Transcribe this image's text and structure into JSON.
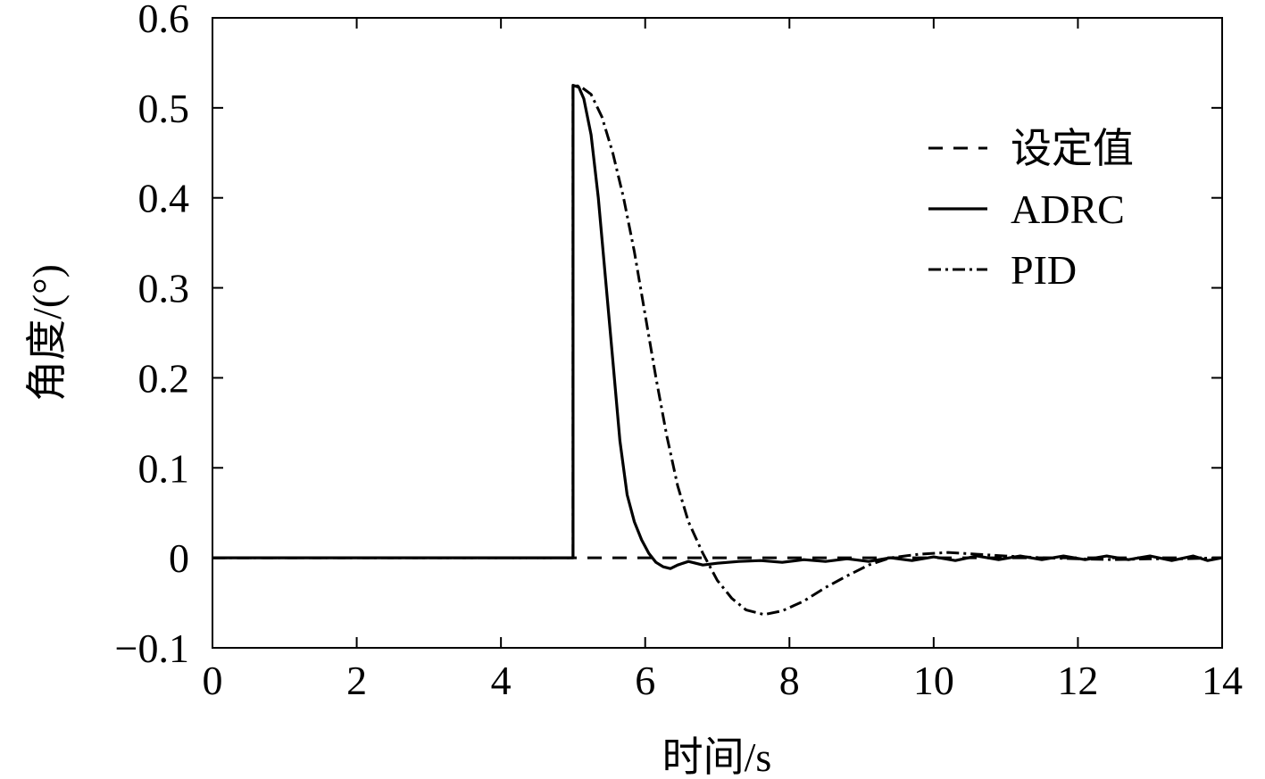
{
  "chart_data": {
    "type": "line",
    "xlabel": "时间/s",
    "ylabel": "角度/(°)",
    "xlim": [
      0,
      14
    ],
    "ylim": [
      -0.1,
      0.6
    ],
    "xticks": [
      0,
      2,
      4,
      6,
      8,
      10,
      12,
      14
    ],
    "yticks": [
      0.6,
      0.5,
      0.4,
      0.3,
      0.2,
      0.1,
      0,
      -0.1
    ],
    "xtick_labels": [
      "0",
      "2",
      "4",
      "6",
      "8",
      "10",
      "12",
      "14"
    ],
    "ytick_labels": [
      "0.6",
      "0.5",
      "0.4",
      "0.3",
      "0.2",
      "0.1",
      "0",
      "−0.1"
    ],
    "grid": false,
    "legend_position": "top-right",
    "series": [
      {
        "name": "设定值",
        "style": "dashed",
        "color": "#000000",
        "points": [
          [
            0,
            0
          ],
          [
            14,
            0
          ]
        ]
      },
      {
        "name": "ADRC",
        "style": "solid",
        "color": "#000000",
        "points": [
          [
            0,
            0
          ],
          [
            5.0,
            0
          ],
          [
            5.0,
            0.525
          ],
          [
            5.08,
            0.523
          ],
          [
            5.15,
            0.51
          ],
          [
            5.25,
            0.47
          ],
          [
            5.35,
            0.4
          ],
          [
            5.45,
            0.31
          ],
          [
            5.55,
            0.22
          ],
          [
            5.65,
            0.13
          ],
          [
            5.75,
            0.07
          ],
          [
            5.85,
            0.04
          ],
          [
            5.95,
            0.02
          ],
          [
            6.05,
            0.005
          ],
          [
            6.15,
            -0.005
          ],
          [
            6.25,
            -0.01
          ],
          [
            6.35,
            -0.012
          ],
          [
            6.45,
            -0.008
          ],
          [
            6.6,
            -0.004
          ],
          [
            6.8,
            -0.008
          ],
          [
            7.0,
            -0.006
          ],
          [
            7.3,
            -0.004
          ],
          [
            7.6,
            -0.003
          ],
          [
            7.9,
            -0.005
          ],
          [
            8.2,
            -0.002
          ],
          [
            8.5,
            -0.004
          ],
          [
            8.8,
            -0.001
          ],
          [
            9.1,
            -0.004
          ],
          [
            9.4,
            0.0
          ],
          [
            9.7,
            -0.003
          ],
          [
            10.0,
            0.001
          ],
          [
            10.3,
            -0.003
          ],
          [
            10.6,
            0.002
          ],
          [
            10.9,
            -0.002
          ],
          [
            11.2,
            0.002
          ],
          [
            11.5,
            -0.002
          ],
          [
            11.8,
            0.002
          ],
          [
            12.1,
            -0.002
          ],
          [
            12.4,
            0.002
          ],
          [
            12.7,
            -0.002
          ],
          [
            13.0,
            0.002
          ],
          [
            13.3,
            -0.003
          ],
          [
            13.6,
            0.002
          ],
          [
            13.8,
            -0.003
          ],
          [
            14.0,
            0.0
          ]
        ]
      },
      {
        "name": "PID",
        "style": "dash-dot",
        "color": "#000000",
        "points": [
          [
            0,
            0
          ],
          [
            5.0,
            0
          ],
          [
            5.0,
            0.525
          ],
          [
            5.1,
            0.524
          ],
          [
            5.25,
            0.515
          ],
          [
            5.4,
            0.49
          ],
          [
            5.55,
            0.45
          ],
          [
            5.7,
            0.4
          ],
          [
            5.85,
            0.34
          ],
          [
            6.0,
            0.27
          ],
          [
            6.15,
            0.2
          ],
          [
            6.3,
            0.135
          ],
          [
            6.45,
            0.08
          ],
          [
            6.6,
            0.04
          ],
          [
            6.8,
            0.005
          ],
          [
            7.0,
            -0.025
          ],
          [
            7.2,
            -0.045
          ],
          [
            7.4,
            -0.058
          ],
          [
            7.65,
            -0.063
          ],
          [
            7.9,
            -0.059
          ],
          [
            8.2,
            -0.048
          ],
          [
            8.5,
            -0.033
          ],
          [
            8.8,
            -0.02
          ],
          [
            9.1,
            -0.008
          ],
          [
            9.4,
            0.0
          ],
          [
            9.8,
            0.004
          ],
          [
            10.2,
            0.006
          ],
          [
            10.6,
            0.004
          ],
          [
            11.0,
            0.002
          ],
          [
            11.5,
            0.0
          ],
          [
            12.0,
            -0.001
          ],
          [
            12.5,
            -0.002
          ],
          [
            13.0,
            -0.001
          ],
          [
            13.5,
            -0.001
          ],
          [
            14.0,
            0.0
          ]
        ]
      }
    ]
  }
}
